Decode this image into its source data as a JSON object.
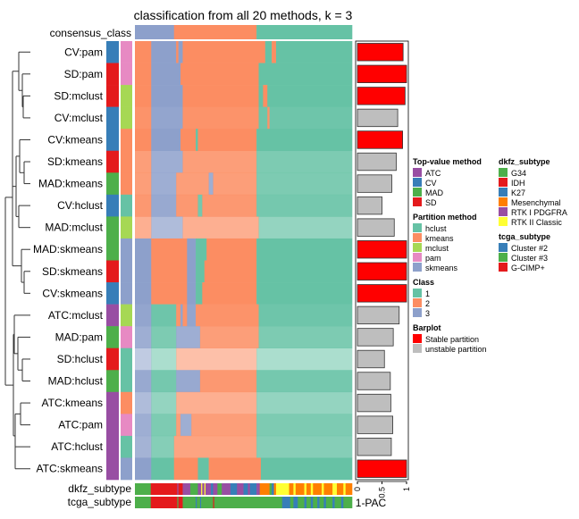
{
  "chart_data": {
    "type": "heatmap",
    "title": "classification from all 20 methods, k = 3",
    "top_annotation_label": "consensus_class",
    "consensus_class": [
      [
        "3",
        18
      ],
      [
        "2",
        56
      ],
      [
        "1",
        100
      ]
    ],
    "rows": [
      {
        "label": "CV:pam",
        "top_value": "CV",
        "partition": "pam",
        "one_minus_pac": 0.93,
        "stable": true,
        "alpha": 1,
        "runs": [
          [
            "2",
            7.5
          ],
          [
            "3",
            19
          ],
          [
            "2",
            20
          ],
          [
            "3",
            22
          ],
          [
            "2",
            60
          ],
          [
            "1",
            63
          ],
          [
            "2",
            65
          ],
          [
            "1",
            100
          ]
        ]
      },
      {
        "label": "SD:pam",
        "top_value": "SD",
        "partition": "pam",
        "one_minus_pac": 1.0,
        "stable": true,
        "alpha": 1,
        "runs": [
          [
            "2",
            7.5
          ],
          [
            "3",
            21
          ],
          [
            "2",
            57
          ],
          [
            "1",
            100
          ]
        ]
      },
      {
        "label": "SD:mclust",
        "top_value": "SD",
        "partition": "mclust",
        "one_minus_pac": 0.97,
        "stable": true,
        "alpha": 1,
        "runs": [
          [
            "2",
            7.5
          ],
          [
            "3",
            22
          ],
          [
            "2",
            57
          ],
          [
            "1",
            59
          ],
          [
            "2",
            61
          ],
          [
            "1",
            100
          ]
        ]
      },
      {
        "label": "CV:mclust",
        "top_value": "CV",
        "partition": "mclust",
        "one_minus_pac": 0.82,
        "stable": false,
        "alpha": 0.95,
        "runs": [
          [
            "2",
            7.5
          ],
          [
            "3",
            22
          ],
          [
            "2",
            57
          ],
          [
            "1",
            61
          ],
          [
            "2",
            62
          ],
          [
            "1",
            100
          ]
        ]
      },
      {
        "label": "CV:kmeans",
        "top_value": "CV",
        "partition": "kmeans",
        "one_minus_pac": 0.92,
        "stable": true,
        "alpha": 1,
        "runs": [
          [
            "2",
            7.5
          ],
          [
            "3",
            21
          ],
          [
            "2",
            28
          ],
          [
            "1",
            29
          ],
          [
            "2",
            56
          ],
          [
            "1",
            100
          ]
        ]
      },
      {
        "label": "SD:kmeans",
        "top_value": "SD",
        "partition": "kmeans",
        "one_minus_pac": 0.79,
        "stable": false,
        "alpha": 0.85,
        "runs": [
          [
            "2",
            7.5
          ],
          [
            "3",
            22
          ],
          [
            "2",
            56
          ],
          [
            "1",
            100
          ]
        ]
      },
      {
        "label": "MAD:kmeans",
        "top_value": "MAD",
        "partition": "kmeans",
        "one_minus_pac": 0.7,
        "stable": false,
        "alpha": 0.85,
        "runs": [
          [
            "2",
            7.5
          ],
          [
            "3",
            19
          ],
          [
            "2",
            34
          ],
          [
            "3",
            36
          ],
          [
            "2",
            56
          ],
          [
            "1",
            100
          ]
        ]
      },
      {
        "label": "CV:hclust",
        "top_value": "CV",
        "partition": "hclust",
        "one_minus_pac": 0.5,
        "stable": false,
        "alpha": 0.9,
        "runs": [
          [
            "2",
            7.5
          ],
          [
            "3",
            19
          ],
          [
            "2",
            29
          ],
          [
            "1",
            31
          ],
          [
            "2",
            56
          ],
          [
            "1",
            100
          ]
        ]
      },
      {
        "label": "MAD:mclust",
        "top_value": "MAD",
        "partition": "mclust",
        "one_minus_pac": 0.75,
        "stable": false,
        "alpha": 0.7,
        "runs": [
          [
            "2",
            7.5
          ],
          [
            "3",
            22
          ],
          [
            "2",
            57
          ],
          [
            "1",
            100
          ]
        ]
      },
      {
        "label": "MAD:skmeans",
        "top_value": "MAD",
        "partition": "skmeans",
        "one_minus_pac": 1.0,
        "stable": true,
        "alpha": 1,
        "runs": [
          [
            "3",
            7.5
          ],
          [
            "2",
            24
          ],
          [
            "3",
            28
          ],
          [
            "1",
            33
          ],
          [
            "2",
            56
          ],
          [
            "1",
            100
          ]
        ]
      },
      {
        "label": "SD:skmeans",
        "top_value": "SD",
        "partition": "skmeans",
        "one_minus_pac": 1.0,
        "stable": true,
        "alpha": 1,
        "runs": [
          [
            "3",
            7.5
          ],
          [
            "2",
            24
          ],
          [
            "3",
            28
          ],
          [
            "1",
            32
          ],
          [
            "2",
            56
          ],
          [
            "1",
            100
          ]
        ]
      },
      {
        "label": "CV:skmeans",
        "top_value": "CV",
        "partition": "skmeans",
        "one_minus_pac": 1.0,
        "stable": true,
        "alpha": 1,
        "runs": [
          [
            "3",
            7.5
          ],
          [
            "2",
            24
          ],
          [
            "3",
            28
          ],
          [
            "1",
            31
          ],
          [
            "2",
            56
          ],
          [
            "1",
            100
          ]
        ]
      },
      {
        "label": "ATC:mclust",
        "top_value": "ATC",
        "partition": "mclust",
        "one_minus_pac": 0.85,
        "stable": false,
        "alpha": 0.95,
        "runs": [
          [
            "3",
            7.5
          ],
          [
            "1",
            19
          ],
          [
            "2",
            21
          ],
          [
            "3",
            22
          ],
          [
            "2",
            24
          ],
          [
            "3",
            28
          ],
          [
            "2",
            57
          ],
          [
            "1",
            100
          ]
        ]
      },
      {
        "label": "MAD:pam",
        "top_value": "MAD",
        "partition": "pam",
        "one_minus_pac": 0.73,
        "stable": false,
        "alpha": 0.85,
        "runs": [
          [
            "3",
            7.5
          ],
          [
            "1",
            19
          ],
          [
            "3",
            30
          ],
          [
            "2",
            57
          ],
          [
            "1",
            100
          ]
        ]
      },
      {
        "label": "SD:hclust",
        "top_value": "SD",
        "partition": "hclust",
        "one_minus_pac": 0.55,
        "stable": false,
        "alpha": 0.55,
        "runs": [
          [
            "3",
            7.5
          ],
          [
            "1",
            19
          ],
          [
            "2",
            56
          ],
          [
            "1",
            100
          ]
        ]
      },
      {
        "label": "MAD:hclust",
        "top_value": "MAD",
        "partition": "hclust",
        "one_minus_pac": 0.67,
        "stable": false,
        "alpha": 0.9,
        "runs": [
          [
            "3",
            7.5
          ],
          [
            "1",
            19
          ],
          [
            "3",
            30
          ],
          [
            "2",
            56
          ],
          [
            "1",
            100
          ]
        ]
      },
      {
        "label": "ATC:kmeans",
        "top_value": "ATC",
        "partition": "kmeans",
        "one_minus_pac": 0.68,
        "stable": false,
        "alpha": 0.7,
        "runs": [
          [
            "3",
            7.5
          ],
          [
            "1",
            19
          ],
          [
            "2",
            56
          ],
          [
            "1",
            100
          ]
        ]
      },
      {
        "label": "ATC:pam",
        "top_value": "ATC",
        "partition": "pam",
        "one_minus_pac": 0.72,
        "stable": false,
        "alpha": 0.85,
        "runs": [
          [
            "3",
            7.5
          ],
          [
            "1",
            19
          ],
          [
            "2",
            21
          ],
          [
            "3",
            26
          ],
          [
            "2",
            56
          ],
          [
            "1",
            100
          ]
        ]
      },
      {
        "label": "ATC:hclust",
        "top_value": "ATC",
        "partition": "hclust",
        "one_minus_pac": 0.69,
        "stable": false,
        "alpha": 0.8,
        "runs": [
          [
            "3",
            7.5
          ],
          [
            "1",
            18
          ],
          [
            "2",
            56
          ],
          [
            "1",
            100
          ]
        ]
      },
      {
        "label": "ATC:skmeans",
        "top_value": "ATC",
        "partition": "skmeans",
        "one_minus_pac": 1.0,
        "stable": true,
        "alpha": 1,
        "runs": [
          [
            "3",
            7.5
          ],
          [
            "1",
            18
          ],
          [
            "2",
            29
          ],
          [
            "1",
            34
          ],
          [
            "2",
            58
          ],
          [
            "1",
            100
          ]
        ]
      }
    ],
    "bottom_annotations": [
      {
        "label": "dkfz_subtype",
        "runs": [
          [
            "G34",
            7.3
          ],
          [
            "IDH",
            19.5
          ],
          [
            "RTK I PDGFRA",
            20
          ],
          [
            "IDH",
            22
          ],
          [
            "RTK I PDGFRA",
            25.5
          ],
          [
            "G34",
            29
          ],
          [
            "RTK I PDGFRA",
            30.5
          ],
          [
            "RTK II Classic",
            31
          ],
          [
            "RTK I PDGFRA",
            32
          ],
          [
            "RTK II Classic",
            32.5
          ],
          [
            "RTK I PDGFRA",
            35
          ],
          [
            "K27",
            36
          ],
          [
            "RTK I PDGFRA",
            38
          ],
          [
            "G34",
            40
          ],
          [
            "RTK I PDGFRA",
            44
          ],
          [
            "K27",
            47
          ],
          [
            "RTK I PDGFRA",
            50
          ],
          [
            "K27",
            52
          ],
          [
            "RTK I PDGFRA",
            53
          ],
          [
            "K27",
            56
          ],
          [
            "RTK I PDGFRA",
            57.5
          ],
          [
            "Mesenchymal",
            62
          ],
          [
            "G34",
            63
          ],
          [
            "K27",
            64
          ],
          [
            "Mesenchymal",
            65
          ],
          [
            "RTK II Classic",
            71
          ],
          [
            "Mesenchymal",
            73
          ],
          [
            "RTK II Classic",
            74
          ],
          [
            "Mesenchymal",
            78
          ],
          [
            "RTK II Classic",
            79
          ],
          [
            "Mesenchymal",
            81
          ],
          [
            "RTK II Classic",
            82
          ],
          [
            "Mesenchymal",
            86
          ],
          [
            "RTK II Classic",
            87
          ],
          [
            "Mesenchymal",
            91
          ],
          [
            "RTK II Classic",
            93
          ],
          [
            "Mesenchymal",
            96
          ],
          [
            "RTK II Classic",
            97
          ],
          [
            "Mesenchymal",
            100
          ]
        ]
      },
      {
        "label": "tcga_subtype",
        "runs": [
          [
            "Cluster #3",
            7.3
          ],
          [
            "G-CIMP+",
            19.5
          ],
          [
            "Cluster #3",
            20
          ],
          [
            "G-CIMP+",
            22
          ],
          [
            "Cluster #3",
            28
          ],
          [
            "Cluster #2",
            28.5
          ],
          [
            "Cluster #3",
            30
          ],
          [
            "Cluster #2",
            30.5
          ],
          [
            "Cluster #3",
            36
          ],
          [
            "G-CIMP+",
            36.5
          ],
          [
            "Cluster #3",
            67.8
          ],
          [
            "Cluster #2",
            71.5
          ],
          [
            "Cluster #3",
            73
          ],
          [
            "Cluster #2",
            75
          ],
          [
            "Cluster #3",
            78
          ],
          [
            "Cluster #2",
            79
          ],
          [
            "Cluster #3",
            81
          ],
          [
            "Cluster #2",
            82
          ],
          [
            "Cluster #3",
            84
          ],
          [
            "Cluster #2",
            85
          ],
          [
            "Cluster #3",
            87
          ],
          [
            "Cluster #2",
            88
          ],
          [
            "Cluster #3",
            91
          ],
          [
            "Cluster #2",
            92
          ],
          [
            "Cluster #3",
            95
          ],
          [
            "Cluster #2",
            96
          ],
          [
            "Cluster #3",
            100
          ]
        ]
      }
    ],
    "barplot": {
      "xlabel": "1-PAC",
      "xlim": [
        0,
        1
      ],
      "ticks": [
        "0",
        "0.5",
        "1"
      ]
    },
    "legends": [
      {
        "title": "Top-value method",
        "items": [
          [
            "ATC",
            "#984EA3"
          ],
          [
            "CV",
            "#377EB8"
          ],
          [
            "MAD",
            "#4DAF4A"
          ],
          [
            "SD",
            "#E41A1C"
          ]
        ]
      },
      {
        "title": "Partition method",
        "items": [
          [
            "hclust",
            "#66C2A5"
          ],
          [
            "kmeans",
            "#FC8D62"
          ],
          [
            "mclust",
            "#A6D854"
          ],
          [
            "pam",
            "#E78AC3"
          ],
          [
            "skmeans",
            "#8DA0CB"
          ]
        ]
      },
      {
        "title": "Class",
        "items": [
          [
            "1",
            "#66C2A5"
          ],
          [
            "2",
            "#FC8D62"
          ],
          [
            "3",
            "#8DA0CB"
          ]
        ]
      },
      {
        "title": "Barplot",
        "items": [
          [
            "Stable partition",
            "#FF0000"
          ],
          [
            "unstable partition",
            "#BEBEBE"
          ]
        ]
      },
      {
        "title": "dkfz_subtype",
        "items": [
          [
            "G34",
            "#4DAF4A"
          ],
          [
            "IDH",
            "#E41A1C"
          ],
          [
            "K27",
            "#377EB8"
          ],
          [
            "Mesenchymal",
            "#FF7F00"
          ],
          [
            "RTK I PDGFRA",
            "#984EA3"
          ],
          [
            "RTK II Classic",
            "#FFFF33"
          ]
        ]
      },
      {
        "title": "tcga_subtype",
        "items": [
          [
            "Cluster #2",
            "#377EB8"
          ],
          [
            "Cluster #3",
            "#4DAF4A"
          ],
          [
            "G-CIMP+",
            "#E41A1C"
          ]
        ]
      }
    ]
  }
}
